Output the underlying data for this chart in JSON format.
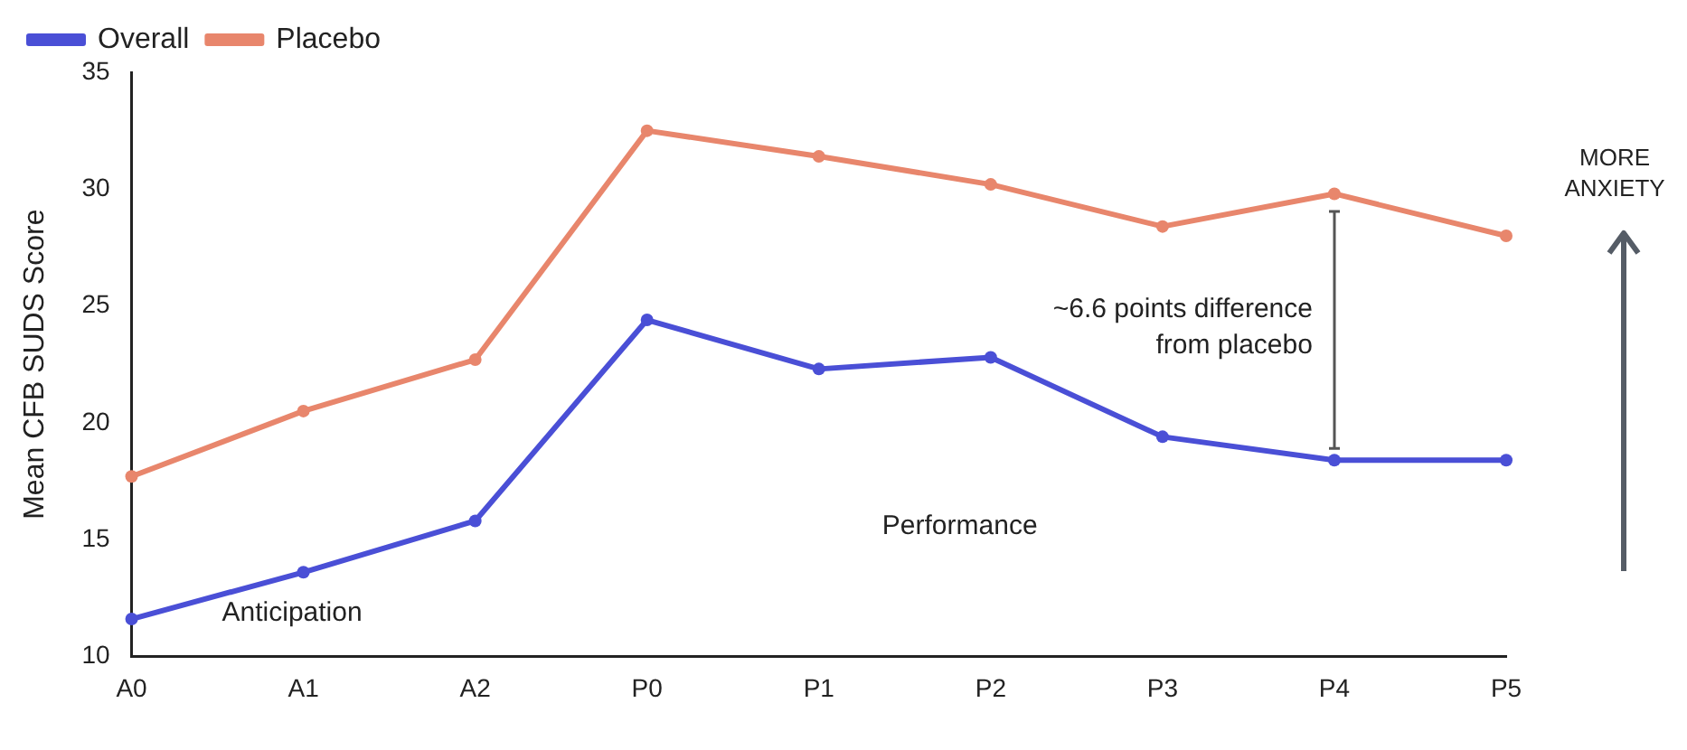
{
  "chart_data": {
    "type": "line",
    "ylabel": "Mean CFB SUDS Score",
    "categories": [
      "A0",
      "A1",
      "A2",
      "P0",
      "P1",
      "P2",
      "P3",
      "P4",
      "P5"
    ],
    "series": [
      {
        "name": "Overall",
        "color": "#4a4fd6",
        "values": [
          11.6,
          13.6,
          15.8,
          24.4,
          22.3,
          22.8,
          19.4,
          18.4,
          18.4
        ]
      },
      {
        "name": "Placebo",
        "color": "#e8866c",
        "values": [
          17.7,
          20.5,
          22.7,
          32.5,
          31.4,
          30.2,
          28.4,
          29.8,
          28.0
        ]
      }
    ],
    "ylim": [
      10,
      35
    ],
    "yticks": [
      10,
      15,
      20,
      25,
      30,
      35
    ],
    "grid": false,
    "legend": "top left",
    "marker": "circle",
    "line_style": "solid",
    "annotations": [
      "~6.6 points difference\nfrom placebo",
      "Anticipation",
      "Performance",
      "MORE\nANXIETY"
    ]
  }
}
